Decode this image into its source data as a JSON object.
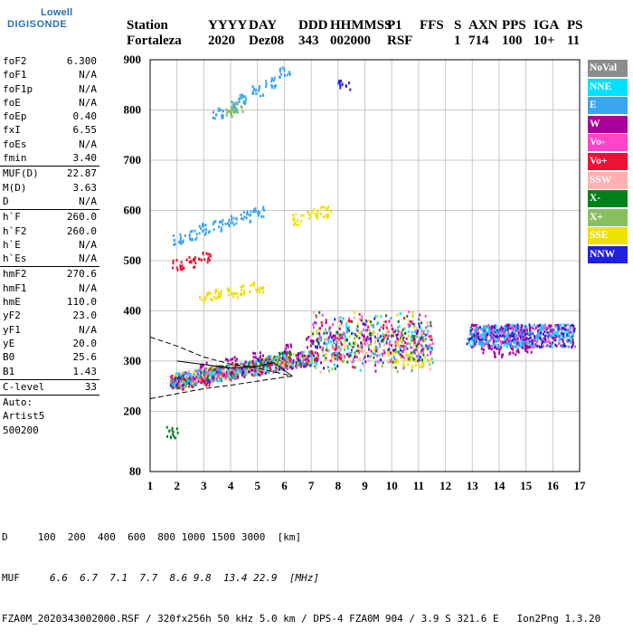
{
  "logo": {
    "line1": "Lowell",
    "line2": "DIGISONDE"
  },
  "header": {
    "labels": [
      "Station",
      "YYYY",
      "DAY",
      "DDD",
      "HHMMSS",
      "P1",
      "FFS",
      "S",
      "AXN",
      "PPS",
      "IGA",
      "PS"
    ],
    "values": [
      "Fortaleza",
      "2020",
      "Dez08",
      "343",
      "002000",
      "RSF",
      "1",
      "714",
      "100",
      "10+",
      "11"
    ]
  },
  "params": [
    {
      "label": "foF2",
      "value": "6.300"
    },
    {
      "label": "foF1",
      "value": "N/A"
    },
    {
      "label": "foF1p",
      "value": "N/A"
    },
    {
      "label": "foE",
      "value": "N/A"
    },
    {
      "label": "foEp",
      "value": "0.40"
    },
    {
      "label": "fxI",
      "value": "6.55"
    },
    {
      "label": "foEs",
      "value": "N/A"
    },
    {
      "label": "fmin",
      "value": "3.40"
    },
    {
      "sep": true
    },
    {
      "label": "MUF(D)",
      "value": "22.87"
    },
    {
      "label": "M(D)",
      "value": "3.63"
    },
    {
      "label": "D",
      "value": "N/A"
    },
    {
      "sep": true
    },
    {
      "label": "h`F",
      "value": "260.0"
    },
    {
      "label": "h`F2",
      "value": "260.0"
    },
    {
      "label": "h`E",
      "value": "N/A"
    },
    {
      "label": "h`Es",
      "value": "N/A"
    },
    {
      "sep": true
    },
    {
      "label": "hmF2",
      "value": "270.6"
    },
    {
      "label": "hmF1",
      "value": "N/A"
    },
    {
      "label": "hmE",
      "value": "110.0"
    },
    {
      "label": "yF2",
      "value": "23.0"
    },
    {
      "label": "yF1",
      "value": "N/A"
    },
    {
      "label": "yE",
      "value": "20.0"
    },
    {
      "label": "B0",
      "value": "25.6"
    },
    {
      "label": "B1",
      "value": "1.43"
    },
    {
      "sep": true
    },
    {
      "label": "C-level",
      "value": "33"
    },
    {
      "sep": true
    },
    {
      "plain": "Auto:"
    },
    {
      "plain": "Artist5"
    },
    {
      "plain": "500200"
    }
  ],
  "legend": [
    {
      "label": "NoVal",
      "color": "#8c8c8c"
    },
    {
      "label": "NNE",
      "color": "#00e0ff"
    },
    {
      "label": "E",
      "color": "#3aa6f0"
    },
    {
      "label": "W",
      "color": "#a8009c"
    },
    {
      "label": "Vo-",
      "color": "#ff44c8"
    },
    {
      "label": "Vo+",
      "color": "#ee1133"
    },
    {
      "label": "SSW",
      "color": "#ffb0b0"
    },
    {
      "label": "X-",
      "color": "#00801a"
    },
    {
      "label": "X+",
      "color": "#88c060"
    },
    {
      "label": "SSE",
      "color": "#f0e000"
    },
    {
      "label": "NNW",
      "color": "#2020e0"
    }
  ],
  "footer": {
    "d_label": "D",
    "d_values": [
      "100",
      "200",
      "400",
      "600",
      "800",
      "1000",
      "1500",
      "3000",
      "[km]"
    ],
    "muf_label": "MUF",
    "muf_values": [
      "6.6",
      "6.7",
      "7.1",
      "7.7",
      "8.6",
      "9.8",
      "13.4",
      "22.9",
      "[MHz]"
    ],
    "info": "FZA0M_2020343002000.RSF / 320fx256h 50 kHz 5.0 km / DPS-4 FZA0M 904 / 3.9 S 321.6 E   Ion2Png 1.3.20"
  },
  "chart_data": {
    "type": "scatter",
    "title": "",
    "xlabel": "",
    "ylabel": "",
    "xlim": [
      1,
      17
    ],
    "ylim": [
      80,
      900
    ],
    "xticks": [
      1,
      2,
      3,
      4,
      5,
      6,
      7,
      8,
      9,
      10,
      11,
      12,
      13,
      14,
      15,
      16,
      17
    ],
    "yticks": [
      80,
      200,
      300,
      400,
      500,
      600,
      700,
      800,
      900
    ],
    "grid": true,
    "legend_position": "right",
    "series": [
      {
        "name": "E",
        "color": "#3aa6f0",
        "points": [
          [
            2.0,
            255
          ],
          [
            2.5,
            262
          ],
          [
            3.0,
            268
          ],
          [
            3.5,
            272
          ],
          [
            4.0,
            280
          ],
          [
            4.5,
            288
          ],
          [
            5.0,
            295
          ],
          [
            5.5,
            302
          ],
          [
            6.0,
            310
          ],
          [
            13.0,
            350
          ],
          [
            13.5,
            355
          ],
          [
            14.0,
            360
          ],
          [
            14.5,
            362
          ],
          [
            15.0,
            358
          ],
          [
            15.5,
            355
          ],
          [
            16.0,
            352
          ],
          [
            2.0,
            545
          ],
          [
            2.5,
            555
          ],
          [
            3.0,
            565
          ],
          [
            3.5,
            572
          ],
          [
            4.0,
            580
          ],
          [
            4.5,
            590
          ],
          [
            5.0,
            600
          ],
          [
            3.5,
            795
          ],
          [
            4.0,
            810
          ],
          [
            4.5,
            825
          ],
          [
            5.0,
            840
          ],
          [
            5.5,
            858
          ],
          [
            6.0,
            878
          ]
        ]
      },
      {
        "name": "W",
        "color": "#a8009c",
        "points": [
          [
            3.0,
            290
          ],
          [
            4.0,
            300
          ],
          [
            5.0,
            310
          ],
          [
            6.0,
            325
          ],
          [
            7.0,
            340
          ],
          [
            8.0,
            350
          ],
          [
            9.0,
            345
          ],
          [
            13.5,
            330
          ],
          [
            14.0,
            320
          ],
          [
            14.5,
            325
          ],
          [
            15.0,
            330
          ]
        ]
      },
      {
        "name": "Vo+",
        "color": "#ee1133",
        "points": [
          [
            2.0,
            255
          ],
          [
            2.5,
            262
          ],
          [
            3.0,
            265
          ],
          [
            4.0,
            275
          ],
          [
            5.0,
            285
          ],
          [
            6.0,
            300
          ],
          [
            7.0,
            310
          ],
          [
            8.0,
            315
          ],
          [
            2.0,
            495
          ],
          [
            2.5,
            500
          ],
          [
            3.0,
            510
          ]
        ]
      },
      {
        "name": "SSE",
        "color": "#f0e000",
        "points": [
          [
            3.0,
            430
          ],
          [
            3.5,
            435
          ],
          [
            4.0,
            440
          ],
          [
            4.5,
            445
          ],
          [
            5.0,
            450
          ],
          [
            10.0,
            310
          ],
          [
            10.5,
            305
          ],
          [
            11.0,
            300
          ],
          [
            6.5,
            585
          ],
          [
            7.0,
            595
          ],
          [
            7.5,
            600
          ]
        ]
      },
      {
        "name": "X-",
        "color": "#00801a",
        "points": [
          [
            1.8,
            160
          ],
          [
            2.0,
            265
          ],
          [
            3.5,
            282
          ],
          [
            5.5,
            300
          ],
          [
            6.0,
            310
          ]
        ]
      },
      {
        "name": "X+",
        "color": "#88c060",
        "points": [
          [
            4.0,
            800
          ],
          [
            4.2,
            805
          ]
        ]
      },
      {
        "name": "NNW",
        "color": "#2020e0",
        "points": [
          [
            8.2,
            852
          ],
          [
            13.0,
            345
          ],
          [
            14.0,
            360
          ],
          [
            15.0,
            350
          ]
        ]
      }
    ],
    "curves": [
      {
        "style": "dashed",
        "points": [
          [
            1,
            348
          ],
          [
            2,
            330
          ],
          [
            3,
            308
          ],
          [
            4,
            294
          ],
          [
            5,
            286
          ],
          [
            6,
            274
          ],
          [
            6.3,
            270
          ]
        ]
      },
      {
        "style": "dashed",
        "points": [
          [
            1,
            225
          ],
          [
            2,
            235
          ],
          [
            3,
            245
          ],
          [
            4,
            252
          ],
          [
            5,
            260
          ],
          [
            6,
            268
          ],
          [
            6.3,
            270
          ]
        ]
      },
      {
        "style": "solid",
        "points": [
          [
            2,
            300
          ],
          [
            3,
            293
          ],
          [
            4,
            286
          ],
          [
            5,
            290
          ],
          [
            5.6,
            297
          ],
          [
            6.3,
            270
          ]
        ]
      }
    ]
  }
}
